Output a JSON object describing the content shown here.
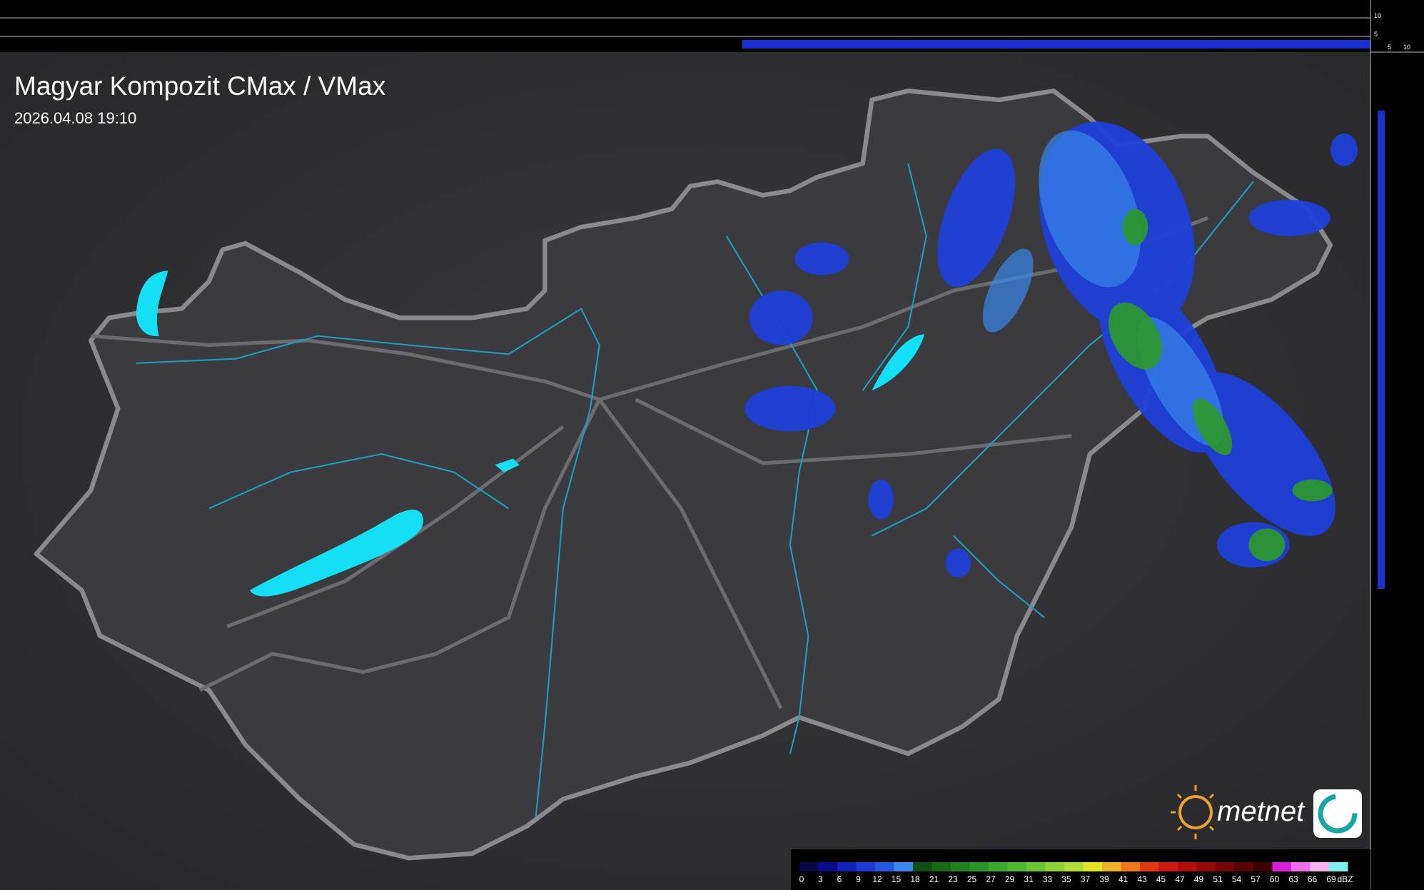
{
  "header": {
    "title": "Magyar Kompozit CMax / VMax",
    "timestamp": "2026.04.08 19:10"
  },
  "profile": {
    "top_labels": [
      "10",
      "5"
    ],
    "side_labels": [
      "5",
      "10"
    ]
  },
  "logo": {
    "text": "metnet"
  },
  "legend": {
    "unit": "dBZ",
    "ticks": [
      0,
      3,
      6,
      9,
      12,
      15,
      18,
      21,
      23,
      25,
      27,
      29,
      31,
      33,
      35,
      37,
      39,
      41,
      43,
      45,
      47,
      49,
      51,
      54,
      57,
      60,
      63,
      66,
      69
    ],
    "colors": [
      "#07074a",
      "#0b0b8a",
      "#1420b8",
      "#1c3ad4",
      "#2458e0",
      "#3a86ec",
      "#0f4f12",
      "#166a16",
      "#1f821f",
      "#2a962a",
      "#3aa82e",
      "#50b832",
      "#6cc634",
      "#8ed236",
      "#b0de38",
      "#e4e428",
      "#f0b428",
      "#ec7818",
      "#e03a12",
      "#cc1a10",
      "#b00e0c",
      "#900808",
      "#720606",
      "#560404",
      "#3c0202",
      "#d820d8",
      "#f070e8",
      "#f4b4f0",
      "#7ff0f0"
    ]
  }
}
